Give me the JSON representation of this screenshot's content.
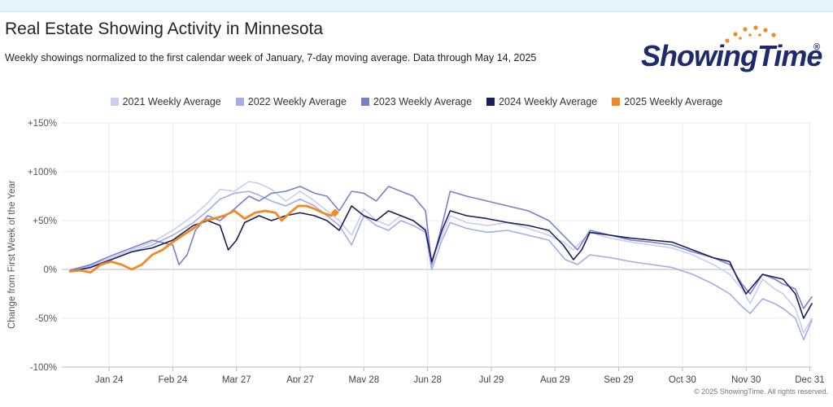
{
  "header": {
    "title": "Real Estate Showing Activity in Minnesota",
    "subtitle": "Weekly showings normalized to the first calendar week of January, 7-day moving average. Data through May 14, 2025"
  },
  "logo": {
    "text": "ShowingTime",
    "reg": "®"
  },
  "footer": {
    "copyright": "© 2025 ShowingTime. All rights reserved."
  },
  "chart_data": {
    "type": "line",
    "ylabel": "Change from First Week of the Year",
    "ylim": [
      -100,
      150
    ],
    "y_ticks": [
      "+150%",
      "+100%",
      "+50%",
      "0%",
      "-50%",
      "-100%"
    ],
    "y_tick_values": [
      150,
      100,
      50,
      0,
      -50,
      -100
    ],
    "x_tick_labels": [
      "Jan 24",
      "Feb 24",
      "Mar 27",
      "Apr 27",
      "May 28",
      "Jun 28",
      "Jul 29",
      "Aug 29",
      "Sep 29",
      "Oct 30",
      "Nov 30",
      "Dec 31"
    ],
    "x_tick_days": [
      24,
      55,
      86,
      117,
      148,
      179,
      210,
      241,
      272,
      303,
      334,
      365
    ],
    "xlim": [
      1,
      366
    ],
    "grid": true,
    "legend_position": "top-center",
    "series": [
      {
        "name": "2021 Weekly Average",
        "color": "#c7cdf3",
        "points": [
          [
            5,
            0
          ],
          [
            15,
            4
          ],
          [
            25,
            12
          ],
          [
            35,
            20
          ],
          [
            45,
            28
          ],
          [
            55,
            40
          ],
          [
            65,
            55
          ],
          [
            72,
            68
          ],
          [
            78,
            82
          ],
          [
            85,
            80
          ],
          [
            92,
            90
          ],
          [
            97,
            88
          ],
          [
            103,
            82
          ],
          [
            110,
            70
          ],
          [
            117,
            80
          ],
          [
            124,
            70
          ],
          [
            130,
            60
          ],
          [
            136,
            50
          ],
          [
            142,
            35
          ],
          [
            148,
            62
          ],
          [
            154,
            50
          ],
          [
            160,
            45
          ],
          [
            166,
            55
          ],
          [
            172,
            50
          ],
          [
            178,
            42
          ],
          [
            181,
            8
          ],
          [
            186,
            35
          ],
          [
            190,
            55
          ],
          [
            198,
            48
          ],
          [
            208,
            45
          ],
          [
            218,
            48
          ],
          [
            228,
            42
          ],
          [
            238,
            35
          ],
          [
            245,
            28
          ],
          [
            250,
            20
          ],
          [
            258,
            38
          ],
          [
            268,
            32
          ],
          [
            278,
            28
          ],
          [
            288,
            25
          ],
          [
            298,
            22
          ],
          [
            308,
            15
          ],
          [
            318,
            5
          ],
          [
            326,
            -5
          ],
          [
            332,
            -20
          ],
          [
            336,
            -35
          ],
          [
            342,
            -10
          ],
          [
            348,
            -20
          ],
          [
            352,
            -25
          ],
          [
            358,
            -40
          ],
          [
            362,
            -65
          ],
          [
            366,
            -50
          ]
        ]
      },
      {
        "name": "2022 Weekly Average",
        "color": "#a4acec",
        "points": [
          [
            5,
            -2
          ],
          [
            15,
            3
          ],
          [
            25,
            10
          ],
          [
            35,
            18
          ],
          [
            45,
            25
          ],
          [
            55,
            35
          ],
          [
            65,
            48
          ],
          [
            72,
            60
          ],
          [
            78,
            72
          ],
          [
            85,
            78
          ],
          [
            92,
            80
          ],
          [
            97,
            76
          ],
          [
            103,
            70
          ],
          [
            110,
            65
          ],
          [
            117,
            72
          ],
          [
            124,
            65
          ],
          [
            130,
            55
          ],
          [
            136,
            45
          ],
          [
            142,
            25
          ],
          [
            148,
            55
          ],
          [
            154,
            45
          ],
          [
            160,
            40
          ],
          [
            166,
            50
          ],
          [
            172,
            45
          ],
          [
            178,
            38
          ],
          [
            181,
            0
          ],
          [
            186,
            30
          ],
          [
            190,
            48
          ],
          [
            198,
            42
          ],
          [
            208,
            38
          ],
          [
            218,
            40
          ],
          [
            228,
            35
          ],
          [
            238,
            30
          ],
          [
            242,
            20
          ],
          [
            246,
            10
          ],
          [
            252,
            5
          ],
          [
            258,
            15
          ],
          [
            268,
            12
          ],
          [
            278,
            8
          ],
          [
            288,
            5
          ],
          [
            298,
            2
          ],
          [
            308,
            -5
          ],
          [
            318,
            -15
          ],
          [
            326,
            -25
          ],
          [
            332,
            -38
          ],
          [
            336,
            -45
          ],
          [
            342,
            -30
          ],
          [
            348,
            -35
          ],
          [
            352,
            -40
          ],
          [
            358,
            -50
          ],
          [
            362,
            -72
          ],
          [
            366,
            -52
          ]
        ]
      },
      {
        "name": "2023 Weekly Average",
        "color": "#7880cc",
        "points": [
          [
            5,
            -1
          ],
          [
            15,
            5
          ],
          [
            25,
            14
          ],
          [
            35,
            22
          ],
          [
            45,
            30
          ],
          [
            55,
            25
          ],
          [
            58,
            5
          ],
          [
            62,
            15
          ],
          [
            66,
            40
          ],
          [
            72,
            55
          ],
          [
            78,
            50
          ],
          [
            85,
            62
          ],
          [
            92,
            75
          ],
          [
            97,
            70
          ],
          [
            103,
            78
          ],
          [
            110,
            80
          ],
          [
            117,
            85
          ],
          [
            124,
            78
          ],
          [
            130,
            75
          ],
          [
            136,
            60
          ],
          [
            142,
            80
          ],
          [
            148,
            78
          ],
          [
            154,
            70
          ],
          [
            160,
            85
          ],
          [
            166,
            80
          ],
          [
            172,
            75
          ],
          [
            178,
            60
          ],
          [
            181,
            5
          ],
          [
            186,
            45
          ],
          [
            190,
            80
          ],
          [
            198,
            75
          ],
          [
            208,
            70
          ],
          [
            218,
            65
          ],
          [
            228,
            60
          ],
          [
            238,
            50
          ],
          [
            245,
            35
          ],
          [
            252,
            20
          ],
          [
            258,
            40
          ],
          [
            268,
            35
          ],
          [
            278,
            30
          ],
          [
            288,
            28
          ],
          [
            298,
            25
          ],
          [
            308,
            18
          ],
          [
            318,
            12
          ],
          [
            326,
            5
          ],
          [
            332,
            -15
          ],
          [
            336,
            -25
          ],
          [
            342,
            -5
          ],
          [
            348,
            -10
          ],
          [
            352,
            -15
          ],
          [
            358,
            -20
          ],
          [
            362,
            -40
          ],
          [
            366,
            -28
          ]
        ]
      },
      {
        "name": "2024 Weekly Average",
        "color": "#1c1d5c",
        "points": [
          [
            5,
            -2
          ],
          [
            15,
            2
          ],
          [
            25,
            10
          ],
          [
            35,
            18
          ],
          [
            45,
            22
          ],
          [
            55,
            30
          ],
          [
            65,
            45
          ],
          [
            72,
            50
          ],
          [
            78,
            45
          ],
          [
            82,
            20
          ],
          [
            86,
            30
          ],
          [
            90,
            48
          ],
          [
            97,
            55
          ],
          [
            103,
            50
          ],
          [
            110,
            55
          ],
          [
            117,
            58
          ],
          [
            124,
            55
          ],
          [
            130,
            50
          ],
          [
            136,
            40
          ],
          [
            142,
            65
          ],
          [
            148,
            55
          ],
          [
            154,
            50
          ],
          [
            160,
            60
          ],
          [
            166,
            55
          ],
          [
            172,
            50
          ],
          [
            178,
            40
          ],
          [
            181,
            8
          ],
          [
            186,
            40
          ],
          [
            190,
            60
          ],
          [
            198,
            55
          ],
          [
            208,
            52
          ],
          [
            218,
            48
          ],
          [
            228,
            45
          ],
          [
            238,
            40
          ],
          [
            245,
            25
          ],
          [
            250,
            10
          ],
          [
            254,
            20
          ],
          [
            258,
            38
          ],
          [
            268,
            35
          ],
          [
            278,
            32
          ],
          [
            288,
            30
          ],
          [
            298,
            28
          ],
          [
            308,
            20
          ],
          [
            318,
            12
          ],
          [
            326,
            8
          ],
          [
            330,
            -10
          ],
          [
            334,
            -25
          ],
          [
            338,
            -15
          ],
          [
            342,
            -5
          ],
          [
            348,
            -8
          ],
          [
            352,
            -10
          ],
          [
            358,
            -25
          ],
          [
            362,
            -50
          ],
          [
            366,
            -35
          ]
        ]
      },
      {
        "name": "2025 Weekly Average",
        "color": "#f08a24",
        "points": [
          [
            5,
            -2
          ],
          [
            10,
            -1
          ],
          [
            15,
            -3
          ],
          [
            20,
            5
          ],
          [
            25,
            8
          ],
          [
            30,
            5
          ],
          [
            35,
            0
          ],
          [
            40,
            5
          ],
          [
            45,
            15
          ],
          [
            50,
            20
          ],
          [
            55,
            28
          ],
          [
            60,
            35
          ],
          [
            65,
            42
          ],
          [
            70,
            50
          ],
          [
            75,
            52
          ],
          [
            80,
            55
          ],
          [
            85,
            60
          ],
          [
            90,
            52
          ],
          [
            95,
            58
          ],
          [
            100,
            60
          ],
          [
            105,
            58
          ],
          [
            108,
            50
          ],
          [
            112,
            58
          ],
          [
            116,
            65
          ],
          [
            120,
            65
          ],
          [
            124,
            62
          ],
          [
            128,
            58
          ],
          [
            132,
            55
          ],
          [
            134,
            58
          ]
        ]
      }
    ]
  }
}
